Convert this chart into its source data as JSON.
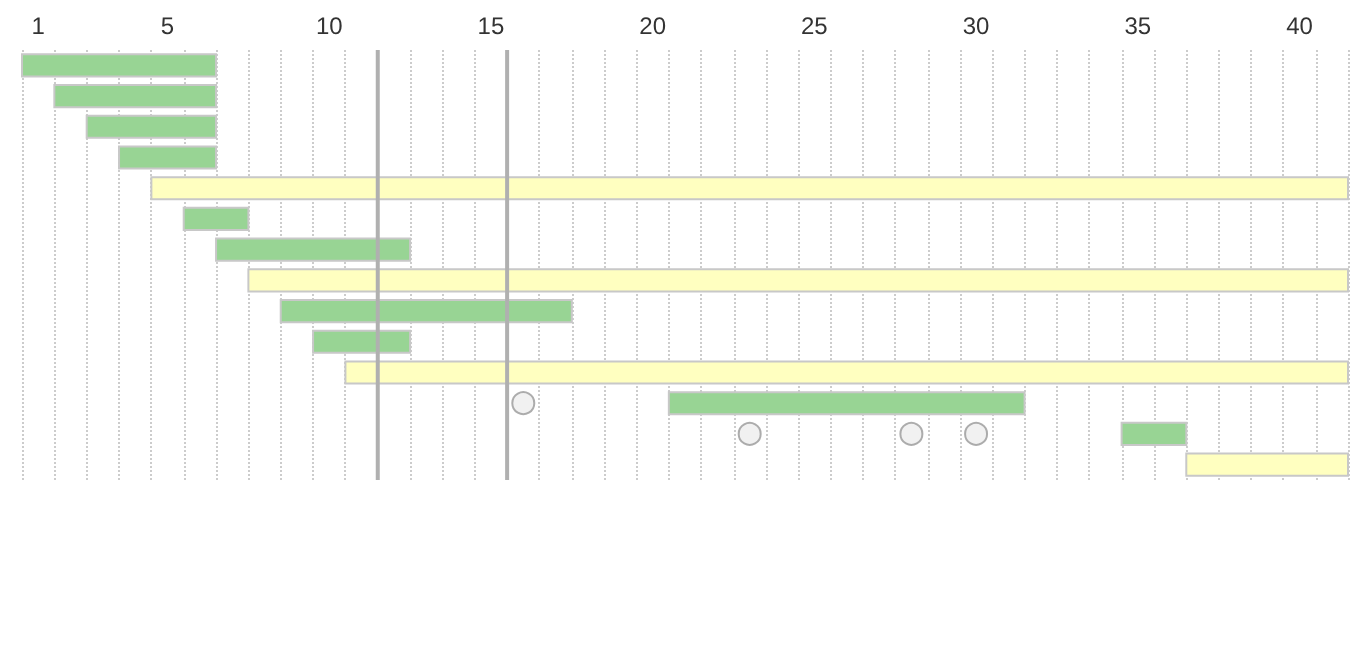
{
  "chart_data": {
    "type": "bar",
    "orientation": "horizontal",
    "categories": [
      null,
      null,
      null,
      null,
      null,
      null,
      null,
      null,
      null,
      null,
      null,
      null,
      null,
      null
    ],
    "xlim": [
      0.5,
      41.5
    ],
    "xticks": [
      1,
      5,
      10,
      15,
      20,
      25,
      30,
      35,
      40,
      {
        "value": 0.5,
        "label": null
      },
      {
        "value": 1.5,
        "label": null
      },
      {
        "value": 2.5,
        "label": null
      },
      {
        "value": 3.5,
        "label": null
      },
      {
        "value": 4.5,
        "label": null
      },
      {
        "value": 5.5,
        "label": null
      },
      {
        "value": 6.5,
        "label": null
      },
      {
        "value": 7.5,
        "label": null
      },
      {
        "value": 8.5,
        "label": null
      },
      {
        "value": 9.5,
        "label": null
      },
      {
        "value": 10.5,
        "label": null
      },
      {
        "value": 12.5,
        "label": null
      },
      {
        "value": 13.5,
        "label": null
      },
      {
        "value": 14.5,
        "label": null
      },
      {
        "value": 16.5,
        "label": null
      },
      {
        "value": 17.5,
        "label": null
      },
      {
        "value": 18.5,
        "label": null
      },
      {
        "value": 19.5,
        "label": null
      },
      {
        "value": 20.5,
        "label": null
      },
      {
        "value": 21.5,
        "label": null
      },
      {
        "value": 22.5,
        "label": null
      },
      {
        "value": 23.5,
        "label": null
      },
      {
        "value": 24.5,
        "label": null
      },
      {
        "value": 25.5,
        "label": null
      },
      {
        "value": 26.5,
        "label": null
      },
      {
        "value": 27.5,
        "label": null
      },
      {
        "value": 28.5,
        "label": null
      },
      {
        "value": 29.5,
        "label": null
      },
      {
        "value": 30.5,
        "label": null
      },
      {
        "value": 31.5,
        "label": null
      },
      {
        "value": 32.5,
        "label": null
      },
      {
        "value": 33.5,
        "label": null
      },
      {
        "value": 34.5,
        "label": null
      },
      {
        "value": 35.5,
        "label": null
      },
      {
        "value": 36.5,
        "label": null
      },
      {
        "value": 37.5,
        "label": null
      },
      {
        "value": 38.5,
        "label": null
      },
      {
        "value": 39.5,
        "label": null
      },
      {
        "value": 40.5,
        "label": null
      },
      {
        "value": 41.5,
        "label": null
      }
    ],
    "grid": "x",
    "series": [
      {
        "type": "bar",
        "base": [
          0.5,
          1.5,
          2.5,
          3.5,
          4.5,
          5.5,
          6.5,
          7.5,
          8.5,
          9.5,
          10.5,
          20.5,
          34.5,
          36.5
        ],
        "values": [
          6,
          5,
          4,
          3,
          37,
          2,
          6,
          34,
          9,
          3,
          31,
          11,
          2,
          5
        ],
        "colors": [
          "#98d494",
          "#98d494",
          "#98d494",
          "#98d494",
          "#ffffc0",
          "#98d494",
          "#98d494",
          "#ffffc0",
          "#98d494",
          "#98d494",
          "#ffffc0",
          "#98d494",
          "#98d494",
          "#ffffc0"
        ]
      },
      {
        "type": "scatter",
        "marker": "circle",
        "color": "#eeeeee",
        "values": [
          null,
          null,
          null,
          null,
          null,
          null,
          null,
          null,
          null,
          null,
          null,
          16,
          23,
          null
        ]
      },
      {
        "type": "scatter",
        "marker": "circle",
        "color": "#eeeeee",
        "values": [
          null,
          null,
          null,
          null,
          null,
          null,
          null,
          null,
          null,
          null,
          null,
          null,
          28,
          null
        ]
      },
      {
        "type": "scatter",
        "marker": "circle",
        "color": "#eeeeee",
        "values": [
          null,
          null,
          null,
          null,
          null,
          null,
          null,
          null,
          null,
          null,
          null,
          null,
          30,
          null
        ]
      }
    ],
    "ref_lines": [
      {
        "axis": "x",
        "value": 11.5,
        "color": "#b0b0b0"
      },
      {
        "axis": "x",
        "value": 15.5,
        "color": "#b0b0b0"
      }
    ]
  }
}
